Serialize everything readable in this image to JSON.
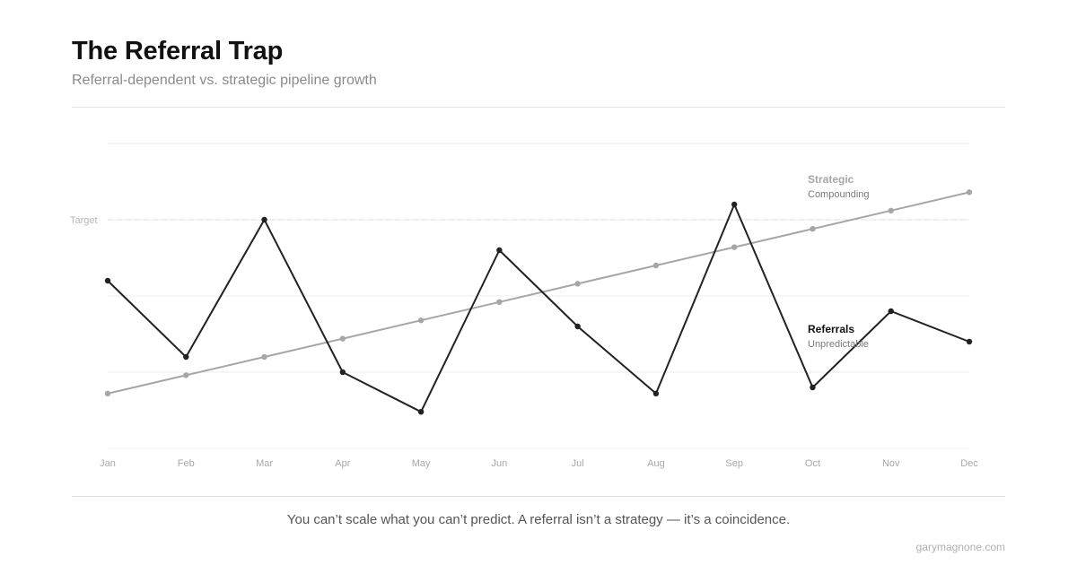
{
  "header": {
    "title": "The Referral Trap",
    "subtitle": "Referral-dependent vs. strategic pipeline growth"
  },
  "chart_data": {
    "type": "line",
    "categories": [
      "Jan",
      "Feb",
      "Mar",
      "Apr",
      "May",
      "Jun",
      "Jul",
      "Aug",
      "Sep",
      "Oct",
      "Nov",
      "Dec"
    ],
    "ylim": [
      0,
      100
    ],
    "grid": true,
    "reference_line": {
      "label": "Target",
      "value": 75
    },
    "series": [
      {
        "name": "Strategic",
        "note": "Compounding",
        "color": "#a6a6a6",
        "values": [
          18,
          24,
          30,
          36,
          42,
          48,
          54,
          60,
          66,
          72,
          78,
          84
        ]
      },
      {
        "name": "Referrals",
        "note": "Unpredictable",
        "color": "#222222",
        "values": [
          55,
          30,
          75,
          25,
          12,
          65,
          40,
          18,
          80,
          20,
          45,
          35
        ]
      }
    ]
  },
  "footer": {
    "tagline": "You can’t scale what you can’t predict. A referral isn’t a strategy — it’s a coincidence.",
    "credit": "garymagnone.com"
  }
}
